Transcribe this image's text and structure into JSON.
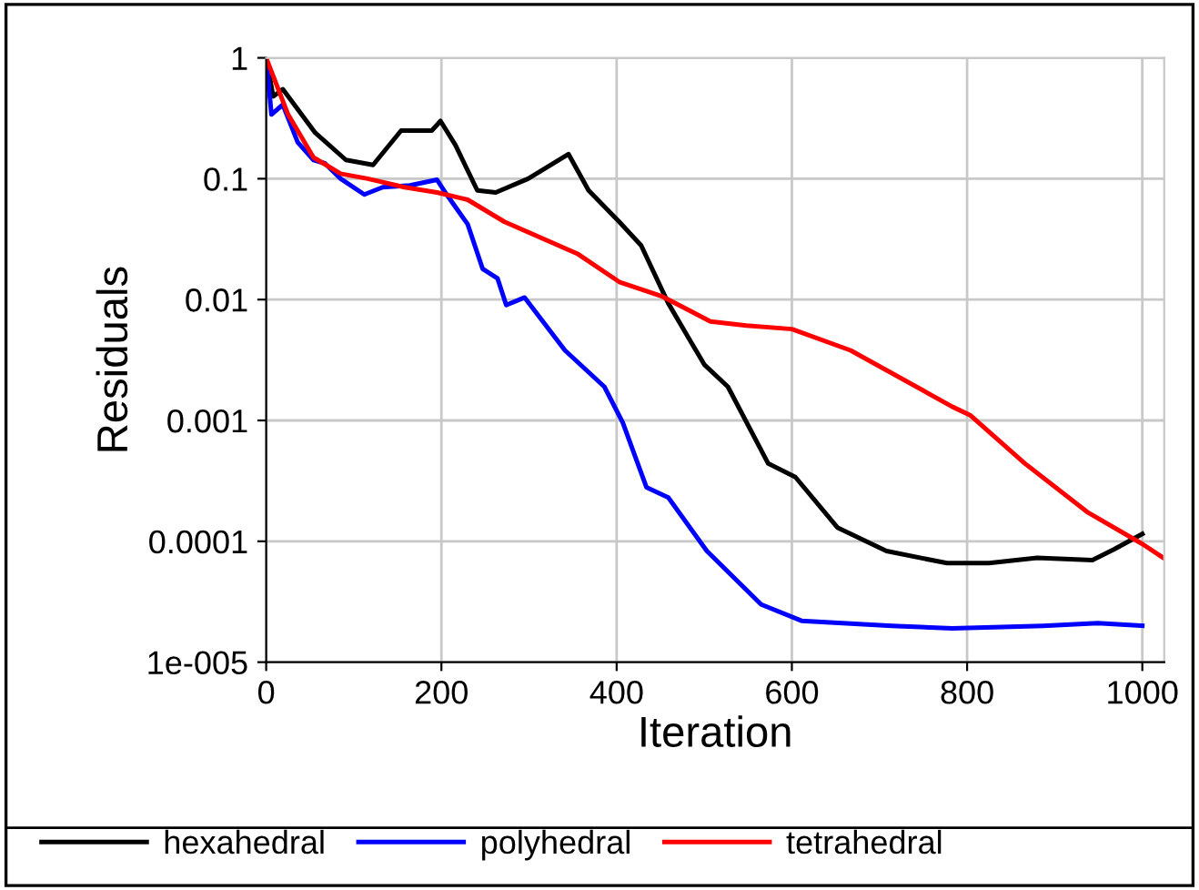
{
  "chart_data": {
    "type": "line",
    "xlabel": "Iteration",
    "ylabel": "Residuals",
    "log": "y",
    "grid": true,
    "legend": "bottom",
    "line_style": "solid",
    "marker": "none",
    "xlim": [
      0,
      1025
    ],
    "xticks": [
      0,
      200,
      400,
      600,
      800,
      1000
    ],
    "ylim": [
      1e-05,
      1
    ],
    "yticks": [
      {
        "value": 1,
        "label": "1"
      },
      {
        "value": 0.1,
        "label": "0.1"
      },
      {
        "value": 0.01,
        "label": "0.01"
      },
      {
        "value": 0.001,
        "label": "0.001"
      },
      {
        "value": 0.0001,
        "label": "0.0001"
      },
      {
        "value": 1e-05,
        "label": "1e-005"
      }
    ],
    "series": [
      {
        "name": "hexahedral",
        "color": "#000000",
        "x": [
          0,
          8,
          19,
          56,
          91,
          122,
          154,
          189,
          199,
          216,
          241,
          262,
          299,
          345,
          368,
          403,
          428,
          459,
          500,
          527,
          573,
          604,
          652,
          708,
          777,
          825,
          880,
          943,
          968,
          1000
        ],
        "values": [
          1,
          0.48,
          0.55,
          0.24,
          0.143,
          0.13,
          0.25,
          0.25,
          0.3,
          0.19,
          0.08,
          0.077,
          0.1,
          0.16,
          0.08,
          0.044,
          0.028,
          0.0093,
          0.0029,
          0.0019,
          0.00044,
          0.00034,
          0.00013,
          8.3e-05,
          6.6e-05,
          6.6e-05,
          7.3e-05,
          7e-05,
          8.6e-05,
          0.000115
        ]
      },
      {
        "name": "polyhedral",
        "color": "#0000ff",
        "x": [
          0,
          6,
          19,
          36,
          54,
          67,
          85,
          112,
          133,
          164,
          195,
          206,
          230,
          247,
          264,
          274,
          295,
          341,
          386,
          407,
          434,
          459,
          503,
          565,
          611,
          714,
          783,
          887,
          949,
          1000
        ],
        "values": [
          1,
          0.34,
          0.41,
          0.2,
          0.143,
          0.134,
          0.1,
          0.074,
          0.085,
          0.088,
          0.098,
          0.074,
          0.042,
          0.018,
          0.015,
          0.009,
          0.0104,
          0.0038,
          0.0019,
          0.00096,
          0.00028,
          0.00023,
          8.3e-05,
          3e-05,
          2.2e-05,
          2e-05,
          1.9e-05,
          2e-05,
          2.1e-05,
          2e-05
        ]
      },
      {
        "name": "tetrahedral",
        "color": "#ff0000",
        "x": [
          0,
          25,
          54,
          85,
          116,
          158,
          195,
          230,
          272,
          355,
          403,
          451,
          507,
          548,
          600,
          667,
          783,
          804,
          866,
          937,
          1000,
          1024
        ],
        "values": [
          1,
          0.34,
          0.15,
          0.11,
          0.1,
          0.085,
          0.077,
          0.067,
          0.044,
          0.024,
          0.014,
          0.0107,
          0.0066,
          0.0061,
          0.0057,
          0.0038,
          0.0013,
          0.0011,
          0.00044,
          0.000175,
          9.5e-05,
          7.3e-05
        ]
      }
    ]
  }
}
